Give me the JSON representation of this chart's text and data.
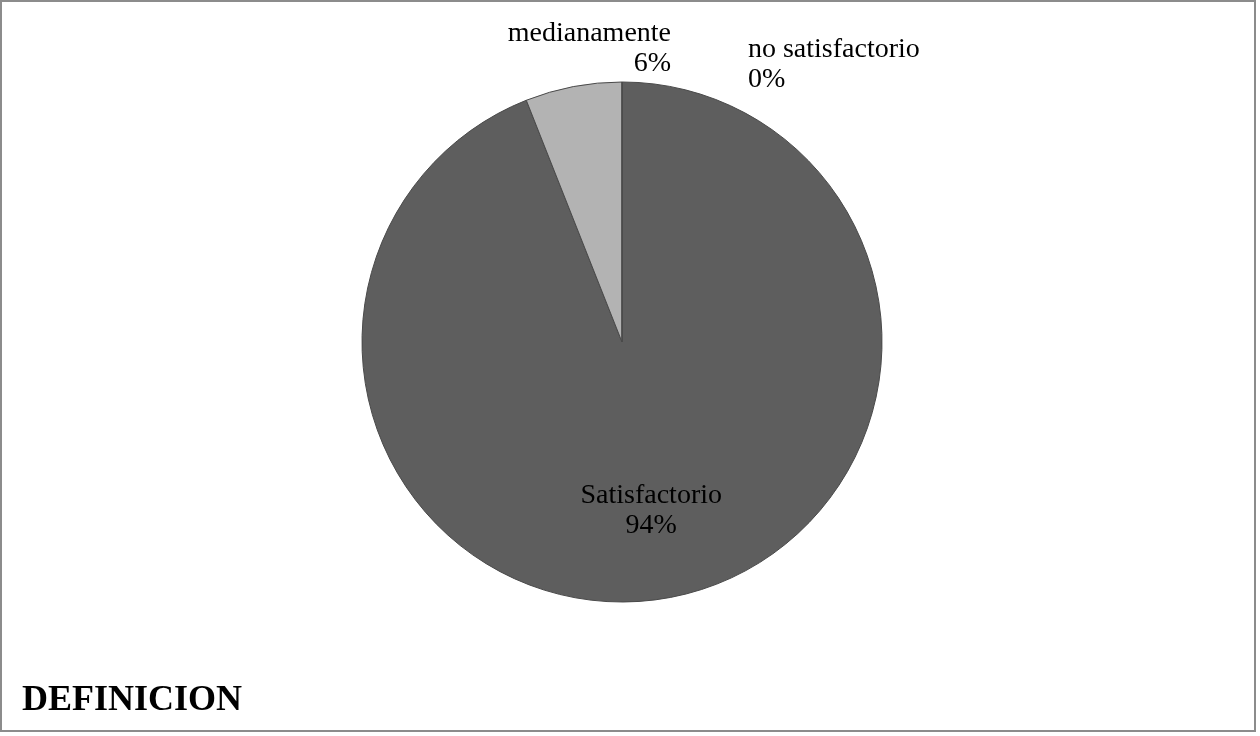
{
  "chart_data": {
    "type": "pie",
    "title": "DEFINICION",
    "categories": [
      "Satisfactorio",
      "medianamente",
      "no satisfactorio"
    ],
    "values": [
      94,
      6,
      0
    ],
    "colors": [
      "#5e5e5e",
      "#b3b3b3",
      "#8a8a8a"
    ],
    "value_labels": [
      "94%",
      "6%",
      "0%"
    ],
    "legend": false
  }
}
